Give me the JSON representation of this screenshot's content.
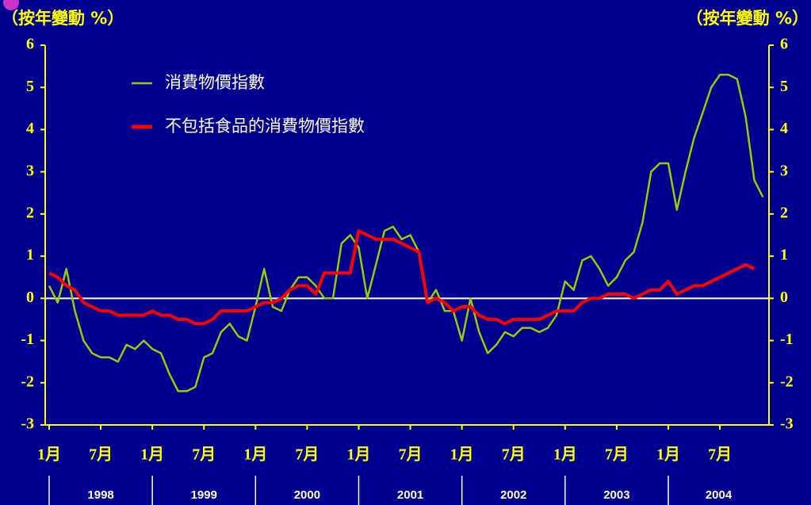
{
  "chart_data": {
    "type": "line",
    "y_axis_label": "（按年變動 %）",
    "y2_axis_label": "（按年變動 %）",
    "categories": [
      "1月",
      null,
      null,
      null,
      null,
      null,
      "7月",
      null,
      null,
      null,
      null,
      null,
      "1月",
      null,
      null,
      null,
      null,
      null,
      "7月",
      null,
      null,
      null,
      null,
      null,
      "1月",
      null,
      null,
      null,
      null,
      null,
      "7月",
      null,
      null,
      null,
      null,
      null,
      "1月",
      null,
      null,
      null,
      null,
      null,
      "7月",
      null,
      null,
      null,
      null,
      null,
      "1月",
      null,
      null,
      null,
      null,
      null,
      "7月",
      null,
      null,
      null,
      null,
      null,
      "1月",
      null,
      null,
      null,
      null,
      null,
      "7月",
      null,
      null,
      null,
      null,
      null,
      "1月",
      null,
      null,
      null,
      null,
      null,
      "7月",
      null,
      null,
      null,
      null,
      null
    ],
    "years": [
      "1998",
      "1999",
      "2000",
      "2001",
      "2002",
      "2003",
      "2004"
    ],
    "series": [
      {
        "name": "消費物價指數",
        "color": "#99cc00",
        "values": [
          0.3,
          -0.1,
          0.7,
          -0.3,
          -1.0,
          -1.3,
          -1.4,
          -1.4,
          -1.5,
          -1.1,
          -1.2,
          -1.0,
          -1.2,
          -1.3,
          -1.8,
          -2.2,
          -2.2,
          -2.1,
          -1.4,
          -1.3,
          -0.8,
          -0.6,
          -0.9,
          -1.0,
          -0.2,
          0.7,
          -0.2,
          -0.3,
          0.2,
          0.5,
          0.5,
          0.3,
          0.0,
          0.0,
          1.3,
          1.5,
          1.2,
          0.0,
          0.8,
          1.6,
          1.7,
          1.4,
          1.5,
          1.1,
          -0.1,
          0.2,
          -0.3,
          -0.3,
          -1.0,
          0.0,
          -0.8,
          -1.3,
          -1.1,
          -0.8,
          -0.9,
          -0.7,
          -0.7,
          -0.8,
          -0.7,
          -0.4,
          0.4,
          0.2,
          0.9,
          1.0,
          0.7,
          0.3,
          0.5,
          0.9,
          1.1,
          1.8,
          3.0,
          3.2,
          3.2,
          2.1,
          3.0,
          3.8,
          4.4,
          5.0,
          5.3,
          5.3,
          5.2,
          4.3,
          2.8,
          2.4
        ]
      },
      {
        "name": "不包括食品的消費物價指數",
        "color": "#ff0000",
        "values": [
          0.6,
          0.5,
          0.3,
          0.2,
          -0.1,
          -0.2,
          -0.3,
          -0.3,
          -0.4,
          -0.4,
          -0.4,
          -0.4,
          -0.3,
          -0.4,
          -0.4,
          -0.5,
          -0.5,
          -0.6,
          -0.6,
          -0.5,
          -0.3,
          -0.3,
          -0.3,
          -0.3,
          -0.2,
          -0.1,
          -0.1,
          0.0,
          0.2,
          0.3,
          0.3,
          0.1,
          0.6,
          0.6,
          0.6,
          0.6,
          1.6,
          1.5,
          1.4,
          1.4,
          1.4,
          1.3,
          1.2,
          1.1,
          -0.1,
          0.0,
          -0.1,
          -0.3,
          -0.2,
          -0.2,
          -0.4,
          -0.5,
          -0.5,
          -0.6,
          -0.5,
          -0.5,
          -0.5,
          -0.5,
          -0.4,
          -0.3,
          -0.3,
          -0.3,
          -0.1,
          0.0,
          0.0,
          0.1,
          0.1,
          0.1,
          0.0,
          0.1,
          0.2,
          0.2,
          0.4,
          0.1,
          0.2,
          0.3,
          0.3,
          0.4,
          0.5,
          0.6,
          0.7,
          0.8,
          0.7,
          null
        ]
      }
    ],
    "ylim": [
      -3,
      6
    ],
    "yticks": [
      -3,
      -2,
      -1,
      0,
      1,
      2,
      3,
      4,
      5,
      6
    ],
    "y2lim": [
      -3,
      6
    ],
    "y2ticks": [
      -3,
      -2,
      -1,
      0,
      1,
      2,
      3,
      4,
      5,
      6
    ],
    "zero_line": true
  }
}
